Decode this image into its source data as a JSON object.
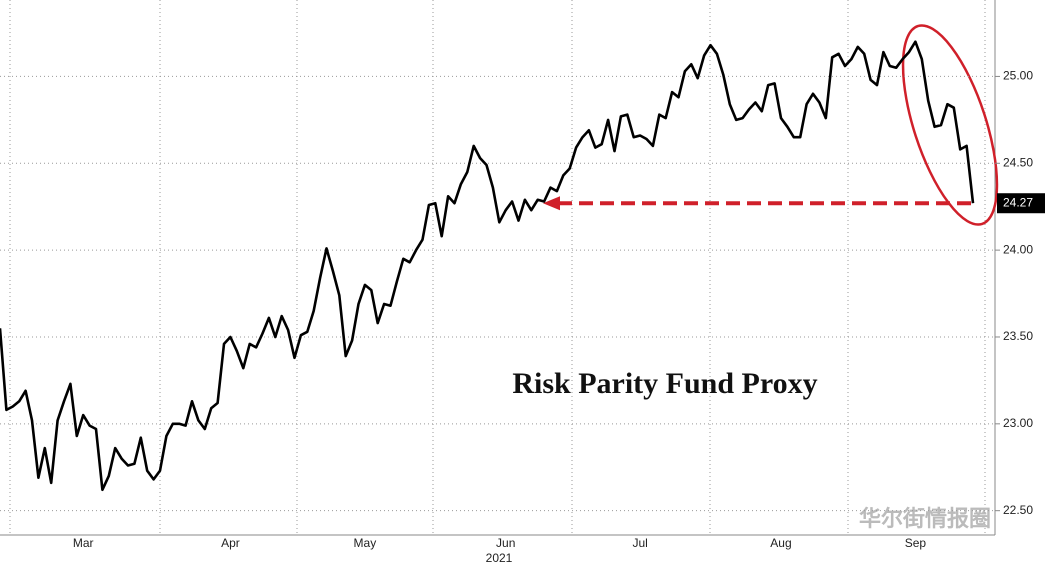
{
  "chart_data": {
    "type": "line",
    "annotation": "Risk Parity Fund Proxy",
    "xlabel": "2021",
    "watermark": "华尔街情报圈",
    "color": "#000000",
    "categories": [
      null,
      null,
      null,
      null,
      null,
      null,
      null,
      null,
      null,
      null,
      null,
      null,
      null,
      "Mar",
      null,
      null,
      null,
      null,
      null,
      null,
      null,
      null,
      null,
      null,
      null,
      null,
      null,
      null,
      null,
      null,
      null,
      null,
      null,
      null,
      null,
      null,
      "Apr",
      null,
      null,
      null,
      null,
      null,
      null,
      null,
      null,
      null,
      null,
      null,
      null,
      null,
      null,
      null,
      null,
      null,
      null,
      null,
      null,
      "May",
      null,
      null,
      null,
      null,
      null,
      null,
      null,
      null,
      null,
      null,
      null,
      null,
      null,
      null,
      null,
      null,
      null,
      null,
      null,
      null,
      null,
      "Jun",
      null,
      null,
      null,
      null,
      null,
      null,
      null,
      null,
      null,
      null,
      null,
      null,
      null,
      null,
      null,
      null,
      null,
      null,
      null,
      null,
      "Jul",
      null,
      null,
      null,
      null,
      null,
      null,
      null,
      null,
      null,
      null,
      null,
      null,
      null,
      null,
      null,
      null,
      null,
      null,
      null,
      null,
      null,
      "Aug",
      null,
      null,
      null,
      null,
      null,
      null,
      null,
      null,
      null,
      null,
      null,
      null,
      null,
      null,
      null,
      null,
      null,
      null,
      null,
      null,
      "Sep",
      null,
      null,
      null,
      null,
      null,
      null,
      null,
      null,
      null
    ],
    "values": [
      23.55,
      23.08,
      23.1,
      23.13,
      23.19,
      23.02,
      22.69,
      22.86,
      22.66,
      23.02,
      23.13,
      23.23,
      22.93,
      23.05,
      22.99,
      22.97,
      22.62,
      22.7,
      22.86,
      22.8,
      22.76,
      22.77,
      22.92,
      22.73,
      22.68,
      22.73,
      22.93,
      23.0,
      23.0,
      22.99,
      23.13,
      23.02,
      22.97,
      23.09,
      23.12,
      23.46,
      23.5,
      23.42,
      23.32,
      23.46,
      23.44,
      23.52,
      23.61,
      23.5,
      23.62,
      23.54,
      23.38,
      23.51,
      23.53,
      23.65,
      23.84,
      24.01,
      23.88,
      23.74,
      23.39,
      23.48,
      23.69,
      23.8,
      23.77,
      23.58,
      23.69,
      23.68,
      23.82,
      23.95,
      23.93,
      24.0,
      24.06,
      24.26,
      24.27,
      24.08,
      24.31,
      24.27,
      24.38,
      24.45,
      24.6,
      24.53,
      24.49,
      24.36,
      24.16,
      24.23,
      24.28,
      24.17,
      24.29,
      24.23,
      24.29,
      24.28,
      24.36,
      24.34,
      24.43,
      24.47,
      24.59,
      24.65,
      24.69,
      24.59,
      24.61,
      24.75,
      24.57,
      24.77,
      24.78,
      24.65,
      24.66,
      24.64,
      24.6,
      24.78,
      24.76,
      24.91,
      24.88,
      25.03,
      25.07,
      24.99,
      25.12,
      25.18,
      25.13,
      25.01,
      24.84,
      24.75,
      24.76,
      24.81,
      24.85,
      24.8,
      24.95,
      24.96,
      24.76,
      24.71,
      24.65,
      24.65,
      24.84,
      24.9,
      24.85,
      24.76,
      25.11,
      25.13,
      25.06,
      25.1,
      25.17,
      25.13,
      24.98,
      24.95,
      25.14,
      25.06,
      25.05,
      25.1,
      25.14,
      25.2,
      25.1,
      24.86,
      24.71,
      24.72,
      24.84,
      24.82,
      24.58,
      24.6,
      24.27
    ],
    "ylim": [
      22.36,
      25.44
    ],
    "yticks": [
      {
        "value": 22.5,
        "label": "22.50"
      },
      {
        "value": 23,
        "label": "23.00"
      },
      {
        "value": 23.5,
        "label": "23.50"
      },
      {
        "value": 24,
        "label": "24.00"
      },
      {
        "value": 24.5,
        "label": "24.50"
      },
      {
        "value": 25,
        "label": "25.00"
      }
    ],
    "grid": true
  }
}
